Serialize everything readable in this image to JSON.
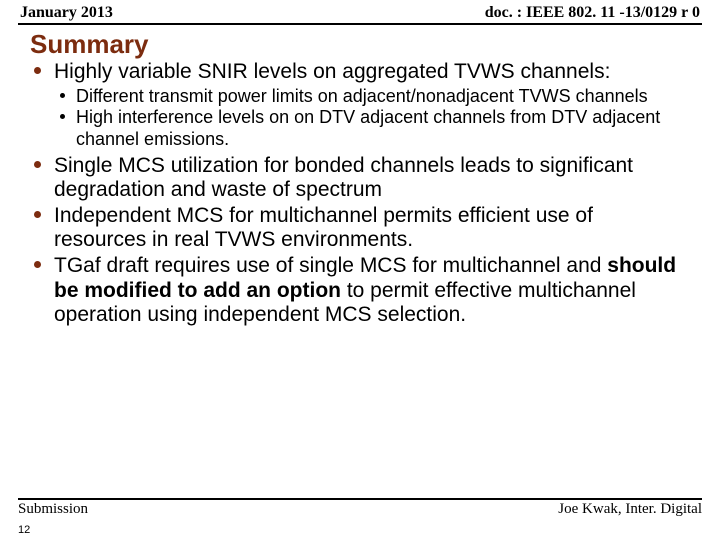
{
  "header": {
    "left": "January 2013",
    "right": "doc. : IEEE 802. 11 -13/0129 r 0"
  },
  "title": "Summary",
  "bullets": [
    {
      "text": "Highly variable SNIR levels on aggregated TVWS channels:",
      "sub": [
        "Different transmit power limits on adjacent/nonadjacent TVWS channels",
        "High interference levels on on DTV adjacent channels from DTV adjacent channel emissions."
      ]
    },
    {
      "text": "Single MCS utilization for bonded channels leads to significant degradation and waste of spectrum"
    },
    {
      "text": "Independent MCS for multichannel permits efficient use of resources in real TVWS environments."
    },
    {
      "segments": [
        {
          "t": "TGaf draft requires use of single MCS for multichannel and ",
          "b": false
        },
        {
          "t": "should be modified to add an option",
          "b": true
        },
        {
          "t": " to permit effective multichannel operation using independent MCS selection.",
          "b": false
        }
      ]
    }
  ],
  "footer": {
    "left": "Submission",
    "right": "Joe Kwak, Inter. Digital",
    "pagenum": "12"
  },
  "colors": {
    "accent": "#7c2c0f",
    "text": "#000000",
    "rule": "#000000",
    "bg": "#ffffff"
  },
  "font_sizes": {
    "header": 16,
    "title": 26,
    "bullet": 21,
    "subbullet": 18,
    "footer": 15,
    "pagenum": 11
  }
}
